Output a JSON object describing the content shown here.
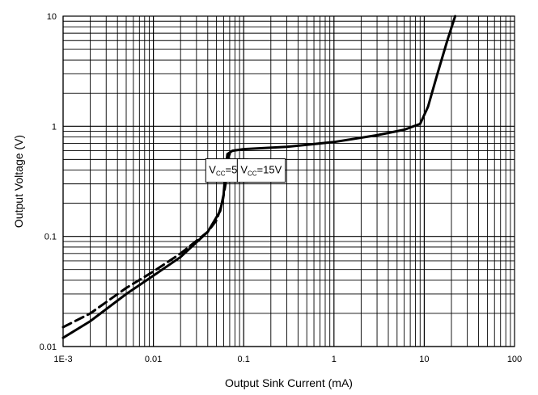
{
  "chart_data": {
    "type": "line",
    "title": "",
    "xlabel": "Output Sink Current (mA)",
    "ylabel": "Output Voltage (V)",
    "x_scale": "log",
    "y_scale": "log",
    "xlim": [
      0.001,
      100
    ],
    "ylim": [
      0.01,
      10
    ],
    "grid": true,
    "x_ticks": [
      "1E-3",
      "0.01",
      "0.1",
      "1",
      "10",
      "100"
    ],
    "y_ticks": [
      "0.01",
      "0.1",
      "1",
      "10"
    ],
    "series": [
      {
        "name": "VCC=15V",
        "line_style": "solid",
        "color": "#000000",
        "points": [
          [
            0.001,
            0.012
          ],
          [
            0.002,
            0.017
          ],
          [
            0.005,
            0.03
          ],
          [
            0.01,
            0.044
          ],
          [
            0.02,
            0.065
          ],
          [
            0.04,
            0.11
          ],
          [
            0.055,
            0.17
          ],
          [
            0.06,
            0.24
          ],
          [
            0.063,
            0.4
          ],
          [
            0.066,
            0.56
          ],
          [
            0.075,
            0.6
          ],
          [
            0.1,
            0.62
          ],
          [
            0.3,
            0.65
          ],
          [
            1,
            0.72
          ],
          [
            3,
            0.83
          ],
          [
            6,
            0.93
          ],
          [
            9,
            1.05
          ],
          [
            11,
            1.5
          ],
          [
            14,
            3
          ],
          [
            18,
            6
          ],
          [
            22,
            10
          ]
        ]
      },
      {
        "name": "VCC=5V",
        "line_style": "dashed",
        "color": "#000000",
        "points": [
          [
            0.001,
            0.015
          ],
          [
            0.002,
            0.02
          ],
          [
            0.005,
            0.034
          ],
          [
            0.01,
            0.048
          ],
          [
            0.02,
            0.07
          ],
          [
            0.04,
            0.11
          ],
          [
            0.05,
            0.14
          ],
          [
            0.058,
            0.2
          ],
          [
            0.063,
            0.3
          ],
          [
            0.066,
            0.5
          ],
          [
            0.07,
            0.56
          ]
        ]
      }
    ],
    "annotations": [
      {
        "main": "V",
        "sub": "CC",
        "rest": "=5V",
        "series": "VCC=5V"
      },
      {
        "main": "V",
        "sub": "CC",
        "rest": "=15V",
        "series": "VCC=15V"
      }
    ]
  }
}
